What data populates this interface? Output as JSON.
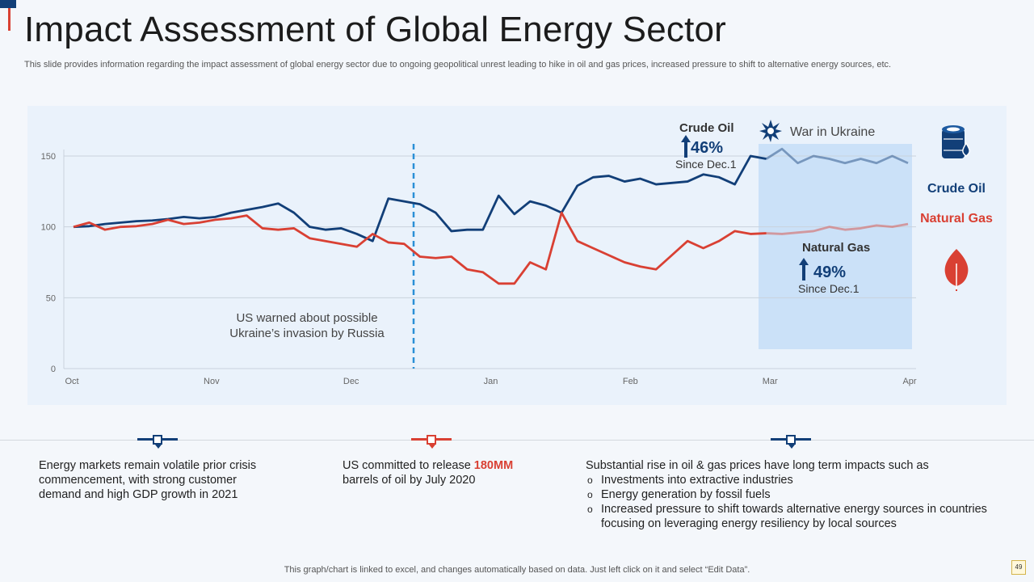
{
  "title": "Impact Assessment of Global Energy Sector",
  "subtitle": "This slide provides information regarding the impact assessment of global energy sector due to ongoing geopolitical unrest leading to hike in oil and gas prices, increased pressure to shift to alternative energy sources, etc.",
  "chart_data": {
    "type": "line",
    "x_labels": [
      "Oct",
      "Nov",
      "Dec",
      "Jan",
      "Feb",
      "Mar",
      "Apr"
    ],
    "ylim": [
      0,
      150
    ],
    "yticks": [
      0,
      50,
      100,
      150
    ],
    "series": [
      {
        "name": "Crude Oil",
        "color": "#123f78",
        "values": [
          100,
          100.5,
          102,
          103,
          104,
          104.5,
          105.5,
          107,
          106,
          107,
          110,
          112,
          114,
          116.5,
          110,
          100,
          98,
          99,
          95,
          90,
          120,
          118,
          116,
          110,
          97,
          98,
          98,
          122,
          109,
          118,
          115,
          110,
          129,
          135,
          136,
          132,
          134,
          130,
          131,
          132,
          137,
          135,
          130,
          150,
          148,
          155,
          145,
          150,
          148,
          145,
          148,
          145,
          150,
          145
        ],
        "highlight_from": 44
      },
      {
        "name": "Natural Gas",
        "color": "#d94033",
        "values": [
          100,
          103,
          98,
          100,
          100.5,
          102,
          105,
          102,
          103,
          105,
          106,
          108,
          99,
          98,
          99,
          92,
          90,
          88,
          86,
          95,
          89,
          88,
          79,
          78,
          79,
          70,
          68,
          60,
          60,
          75,
          70,
          110,
          90,
          85,
          80,
          75,
          72,
          70,
          80,
          90,
          85,
          90,
          97,
          95,
          95.5,
          95,
          96,
          97,
          100,
          98,
          99,
          101,
          100,
          102
        ],
        "highlight_from": 44
      }
    ],
    "event_line_label": "US warned about possible Ukraine’s invasion by Russia",
    "highlight_label": "War in Ukraine",
    "callouts": [
      {
        "name": "Crude Oil",
        "percent": "46%",
        "since": "Since Dec.1"
      },
      {
        "name": "Natural Gas",
        "percent": "49%",
        "since": "Since Dec.1"
      }
    ],
    "legend": [
      {
        "label": "Crude Oil",
        "color": "#123f78"
      },
      {
        "label": "Natural Gas",
        "color": "#d94033"
      }
    ]
  },
  "notes": {
    "note1": "Energy markets remain volatile prior crisis commencement, with strong customer demand and high GDP growth in 2021",
    "note2_pre": "US committed to release ",
    "note2_highlight": "180MM",
    "note2_post": " barrels of oil by July 2020",
    "note3_intro": "Substantial rise in oil & gas prices have long term impacts such as",
    "note3_items": [
      "Investments into extractive industries",
      "Energy generation  by fossil fuels",
      "Increased pressure to shift towards alternative energy sources in countries focusing on leveraging energy resiliency by local sources"
    ]
  },
  "footer": "This graph/chart is linked to excel,  and changes automatically based on data. Just left click on it and select “Edit Data”.",
  "page_number": "49"
}
